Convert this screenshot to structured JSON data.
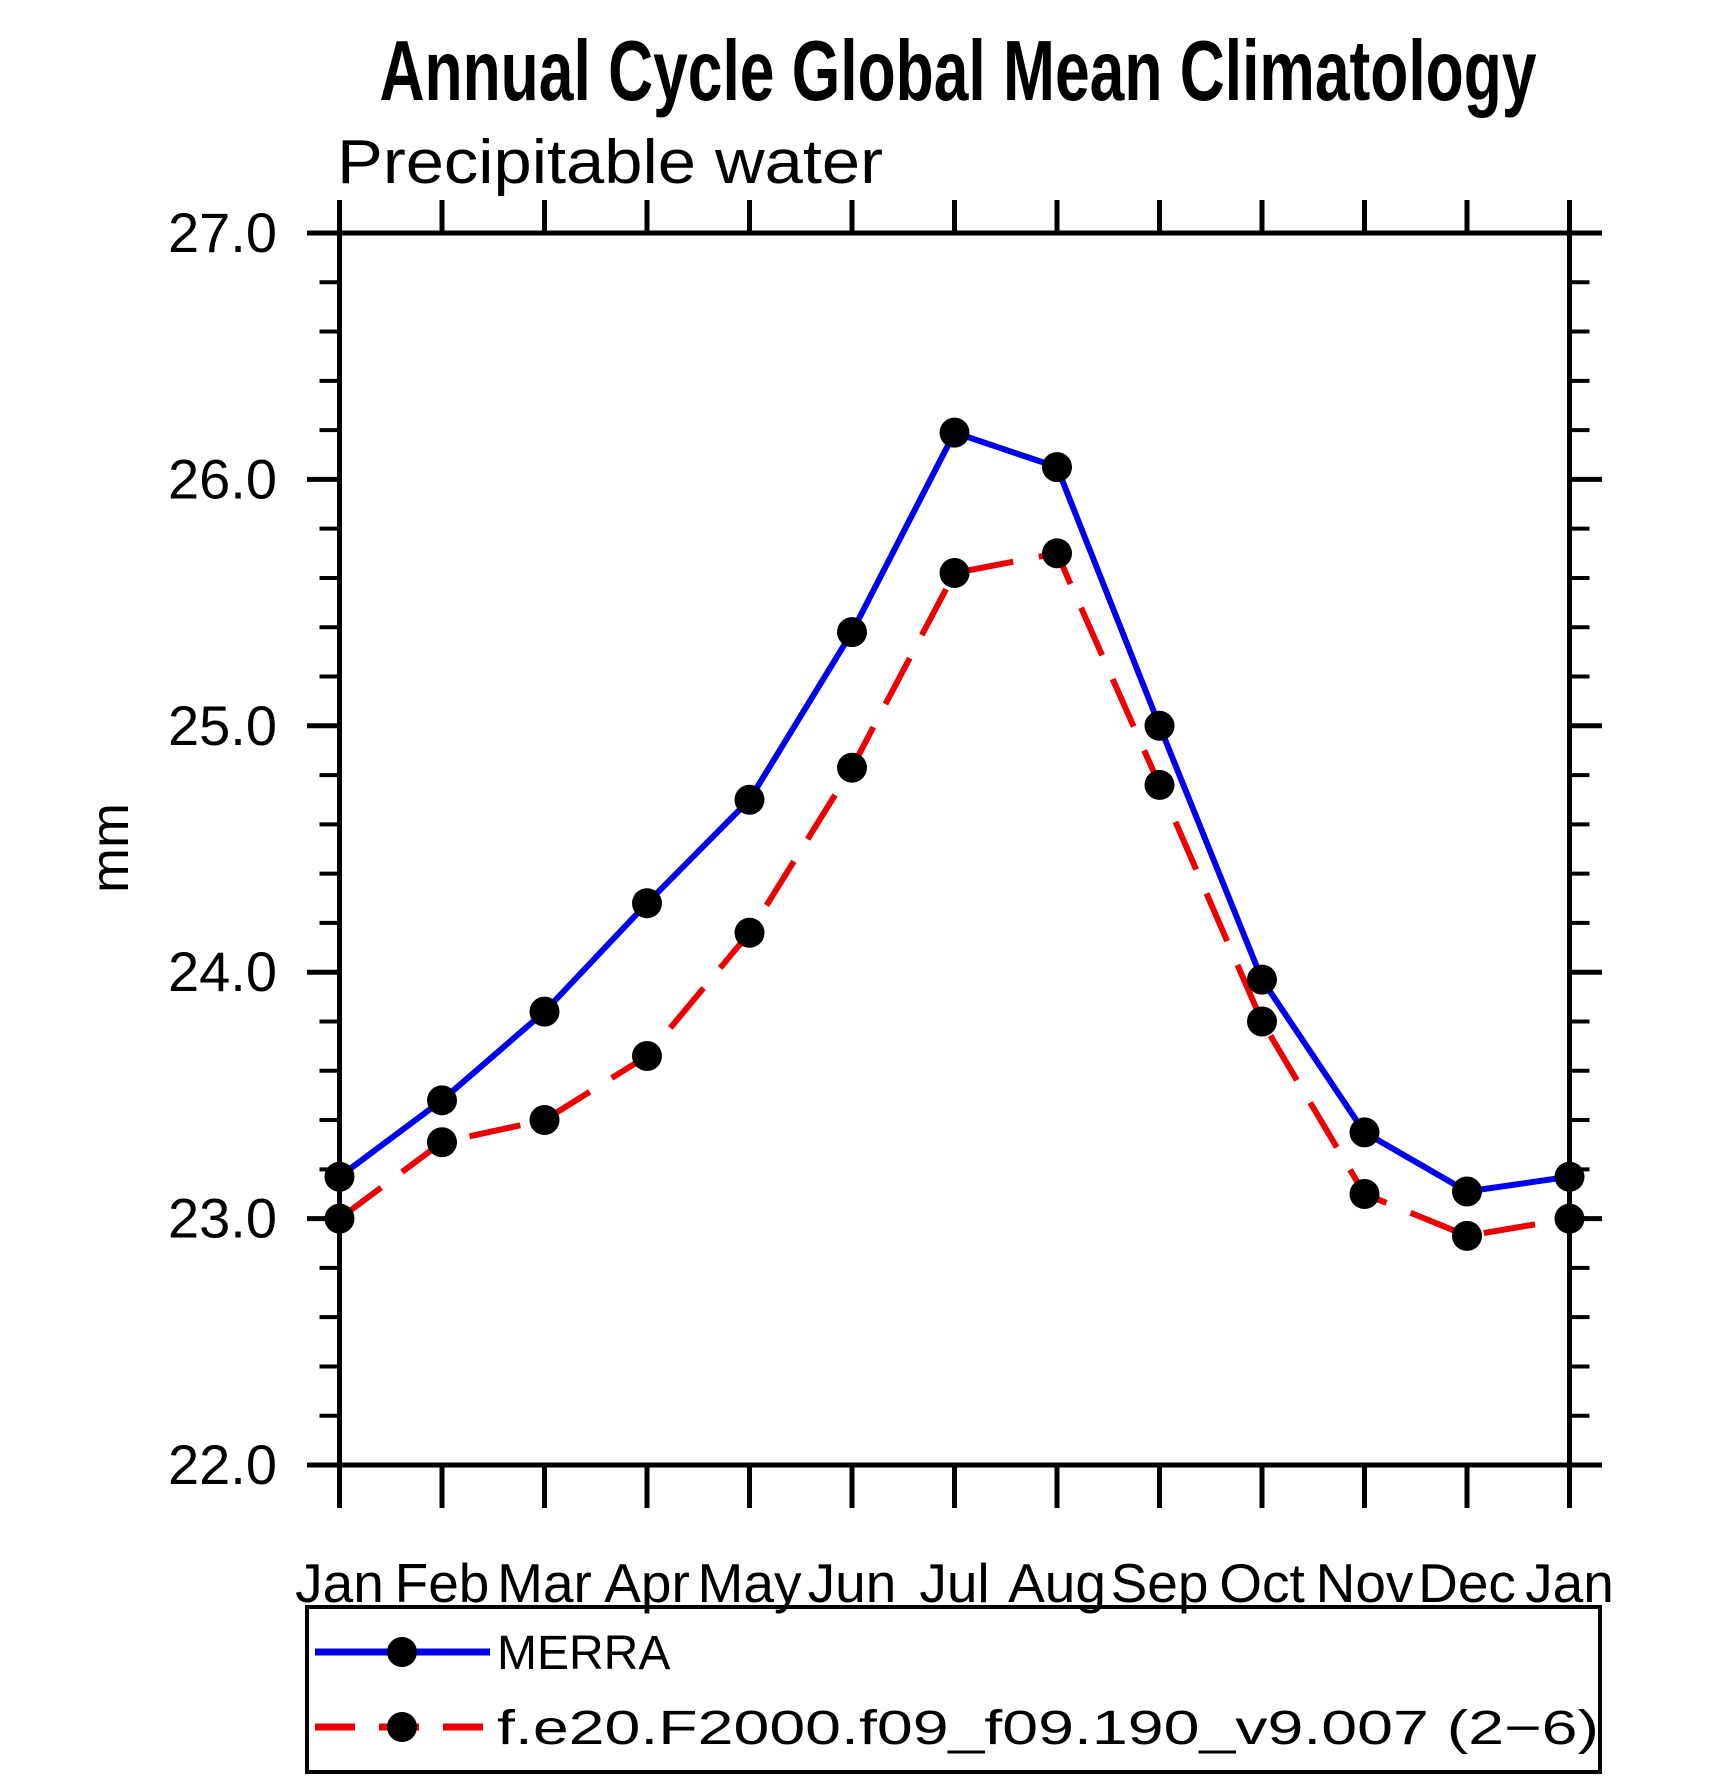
{
  "title": "Annual Cycle Global Mean Climatology",
  "subtitle": "Precipitable water",
  "y_axis": {
    "label": "mm",
    "min": 22.0,
    "max": 27.0,
    "major_step": 1.0,
    "minor_step": 0.2,
    "tick_labels": [
      "22.0",
      "23.0",
      "24.0",
      "25.0",
      "26.0",
      "27.0"
    ]
  },
  "x_axis": {
    "tick_labels": [
      "Jan",
      "Feb",
      "Mar",
      "Apr",
      "May",
      "Jun",
      "Jul",
      "Aug",
      "Sep",
      "Oct",
      "Nov",
      "Dec",
      "Jan"
    ]
  },
  "legend": {
    "entries": [
      {
        "label": "MERRA",
        "color": "#0000ee",
        "line_style": "solid",
        "marker": "black-dot"
      },
      {
        "label": "f.e20.F2000.f09_f09.190_v9.007 (2−6)",
        "color": "#ee0000",
        "line_style": "dashed",
        "marker": "black-dot"
      }
    ]
  },
  "colors": {
    "merra_line": "#0000ee",
    "model_line": "#ee0000",
    "marker": "#000000",
    "axis": "#000000",
    "background": "#ffffff"
  },
  "chart_data": {
    "type": "line",
    "title": "Annual Cycle Global Mean Climatology",
    "subtitle": "Precipitable water",
    "ylabel": "mm",
    "ylim": [
      22.0,
      27.0
    ],
    "y_major_step": 1.0,
    "y_minor_step": 0.2,
    "grid": false,
    "legend_position": "bottom",
    "categories": [
      "Jan",
      "Feb",
      "Mar",
      "Apr",
      "May",
      "Jun",
      "Jul",
      "Aug",
      "Sep",
      "Oct",
      "Nov",
      "Dec",
      "Jan"
    ],
    "series": [
      {
        "name": "MERRA",
        "color": "#0000ee",
        "line_style": "solid",
        "marker": "circle",
        "marker_color": "#000000",
        "values": [
          23.17,
          23.48,
          23.84,
          24.28,
          24.7,
          25.38,
          26.19,
          26.05,
          25.0,
          23.97,
          23.35,
          23.11,
          23.17
        ]
      },
      {
        "name": "f.e20.F2000.f09_f09.190_v9.007 (2−6)",
        "color": "#ee0000",
        "line_style": "dashed",
        "marker": "circle",
        "marker_color": "#000000",
        "values": [
          23.0,
          23.31,
          23.4,
          23.66,
          24.16,
          24.83,
          25.62,
          25.7,
          24.76,
          23.8,
          23.1,
          22.93,
          23.0
        ]
      }
    ]
  }
}
